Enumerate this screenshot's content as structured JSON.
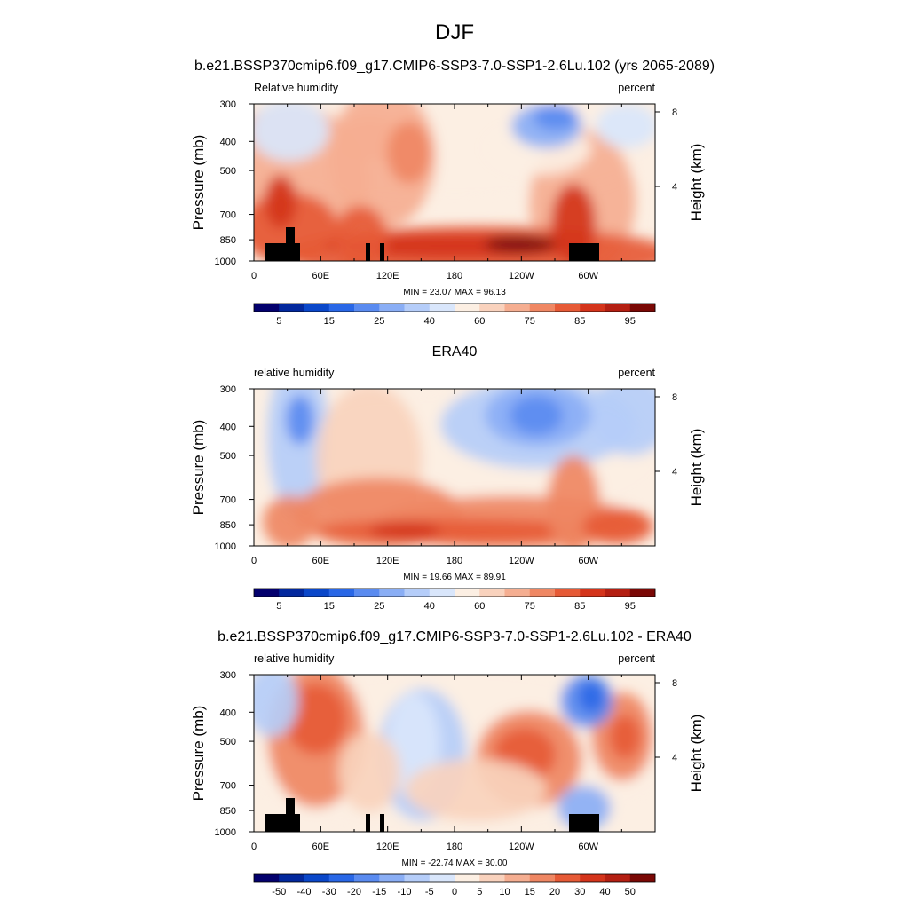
{
  "figure": {
    "season": "DJF",
    "case_title": "b.e21.BSSP370cmip6.f09_g17.CMIP6-SSP3-7.0-SSP1-2.6Lu.102 (yrs 2065-2089)",
    "obs_title": "ERA40",
    "diff_title": "b.e21.BSSP370cmip6.f09_g17.CMIP6-SSP3-7.0-SSP1-2.6Lu.102 - ERA40"
  },
  "chart_data": [
    {
      "type": "heatmap",
      "panel": "model",
      "left_string": "Relative humidity",
      "right_string": "percent",
      "ylabel": "Pressure (mb)",
      "ylabel_right": "Height (km)",
      "x_ticks": [
        "0",
        "60E",
        "120E",
        "180",
        "120W",
        "60W"
      ],
      "x_tick_values": [
        0,
        60,
        120,
        180,
        240,
        300
      ],
      "xlim": [
        0,
        360
      ],
      "y_ticks": [
        "300",
        "400",
        "500",
        "700",
        "850",
        "1000"
      ],
      "y_tick_values": [
        300,
        400,
        500,
        700,
        850,
        1000
      ],
      "ylim": [
        1000,
        300
      ],
      "y_log": true,
      "height_ticks": [
        "8",
        "4"
      ],
      "height_tick_values": [
        8,
        4
      ],
      "min_max_text": "MIN = 23.07  MAX = 96.13",
      "min": 23.07,
      "max": 96.13,
      "colorbar_labels": [
        "5",
        "15",
        "25",
        "40",
        "60",
        "75",
        "85",
        "95"
      ],
      "colorbar_colors": [
        "#03006d",
        "#02289d",
        "#0a47c9",
        "#2967e6",
        "#5a8bf0",
        "#8aaef5",
        "#b5cdf9",
        "#d9e6fb",
        "#fcefe3",
        "#f9d2bd",
        "#f5ae91",
        "#ef8763",
        "#e65a36",
        "#d4341b",
        "#b41f12",
        "#7a0805"
      ]
    },
    {
      "type": "heatmap",
      "panel": "observations",
      "left_string": "relative humidity",
      "right_string": "percent",
      "ylabel": "Pressure (mb)",
      "ylabel_right": "Height (km)",
      "x_ticks": [
        "0",
        "60E",
        "120E",
        "180",
        "120W",
        "60W"
      ],
      "x_tick_values": [
        0,
        60,
        120,
        180,
        240,
        300
      ],
      "xlim": [
        0,
        360
      ],
      "y_ticks": [
        "300",
        "400",
        "500",
        "700",
        "850",
        "1000"
      ],
      "y_tick_values": [
        300,
        400,
        500,
        700,
        850,
        1000
      ],
      "ylim": [
        1000,
        300
      ],
      "y_log": true,
      "height_ticks": [
        "8",
        "4"
      ],
      "height_tick_values": [
        8,
        4
      ],
      "min_max_text": "MIN = 19.66  MAX = 89.91",
      "min": 19.66,
      "max": 89.91,
      "colorbar_labels": [
        "5",
        "15",
        "25",
        "40",
        "60",
        "75",
        "85",
        "95"
      ],
      "colorbar_colors": [
        "#03006d",
        "#02289d",
        "#0a47c9",
        "#2967e6",
        "#5a8bf0",
        "#8aaef5",
        "#b5cdf9",
        "#d9e6fb",
        "#fcefe3",
        "#f9d2bd",
        "#f5ae91",
        "#ef8763",
        "#e65a36",
        "#d4341b",
        "#b41f12",
        "#7a0805"
      ]
    },
    {
      "type": "heatmap",
      "panel": "difference",
      "left_string": "relative humidity",
      "right_string": "percent",
      "ylabel": "Pressure (mb)",
      "ylabel_right": "Height (km)",
      "x_ticks": [
        "0",
        "60E",
        "120E",
        "180",
        "120W",
        "60W"
      ],
      "x_tick_values": [
        0,
        60,
        120,
        180,
        240,
        300
      ],
      "xlim": [
        0,
        360
      ],
      "y_ticks": [
        "300",
        "400",
        "500",
        "700",
        "850",
        "1000"
      ],
      "y_tick_values": [
        300,
        400,
        500,
        700,
        850,
        1000
      ],
      "ylim": [
        1000,
        300
      ],
      "y_log": true,
      "height_ticks": [
        "8",
        "4"
      ],
      "height_tick_values": [
        8,
        4
      ],
      "min_max_text": "MIN = -22.74  MAX = 30.00",
      "min": -22.74,
      "max": 30.0,
      "colorbar_labels": [
        "-50",
        "-40",
        "-30",
        "-20",
        "-15",
        "-10",
        "-5",
        "0",
        "5",
        "10",
        "15",
        "20",
        "30",
        "40",
        "50"
      ],
      "colorbar_colors": [
        "#03006d",
        "#02289d",
        "#0a47c9",
        "#2967e6",
        "#5a8bf0",
        "#8aaef5",
        "#b5cdf9",
        "#d9e6fb",
        "#fcefe3",
        "#f9d2bd",
        "#f5ae91",
        "#ef8763",
        "#e65a36",
        "#d4341b",
        "#b41f12",
        "#7a0805"
      ]
    }
  ]
}
